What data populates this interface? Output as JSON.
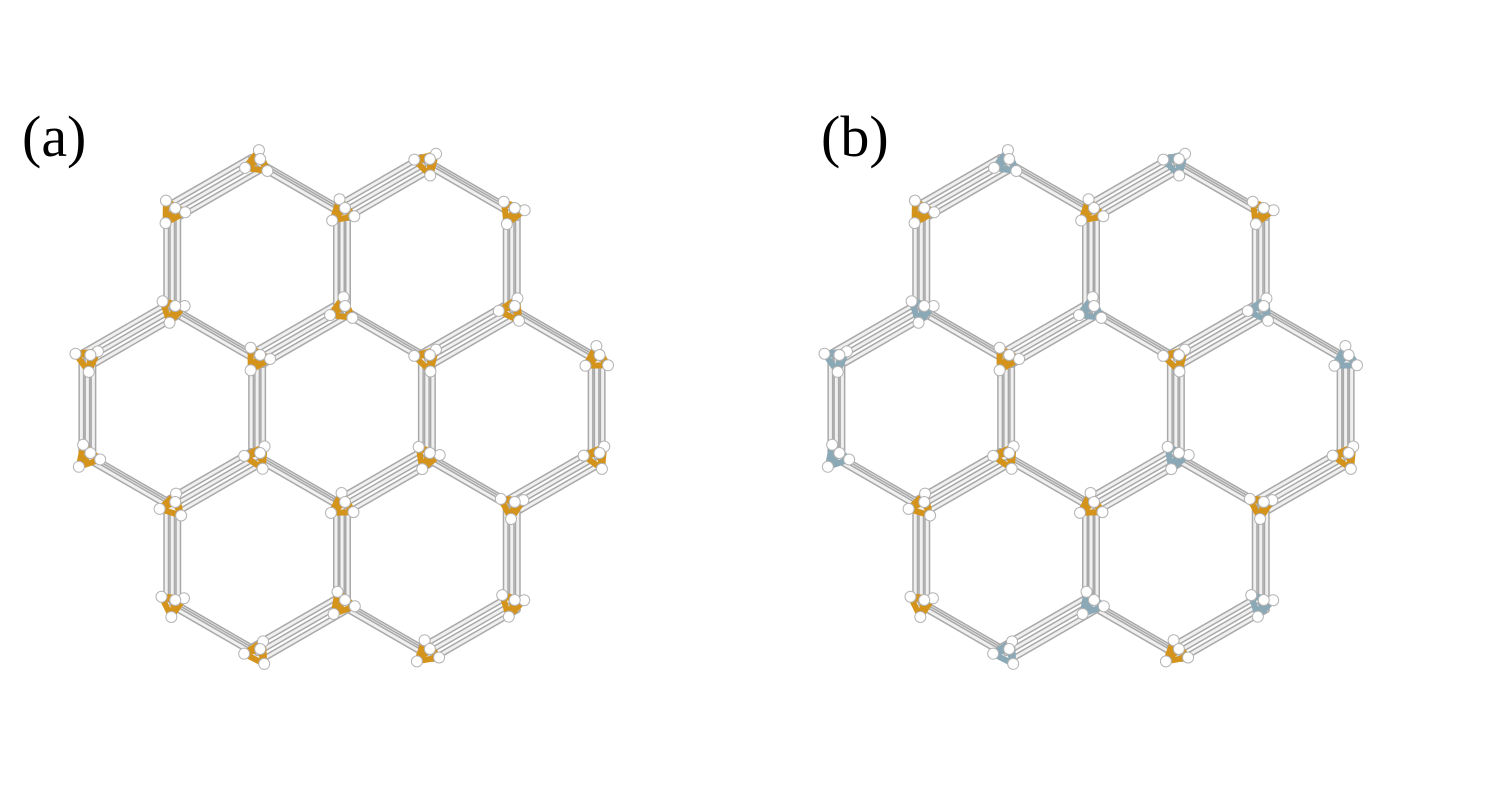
{
  "panels": [
    {
      "label": "(a)",
      "cluster_colors": [
        "gold",
        "gold",
        "gold",
        "gold",
        "gold",
        "gold",
        "gold",
        "gold",
        "gold",
        "gold",
        "gold",
        "gold",
        "gold",
        "gold",
        "gold",
        "gold",
        "gold",
        "gold",
        "gold",
        "gold",
        "gold",
        "gold",
        "gold",
        "gold"
      ]
    },
    {
      "label": "(b)",
      "cluster_colors": [
        "gold",
        "blue",
        "gold",
        "blue",
        "gold",
        "gold",
        "blue",
        "gold",
        "blue",
        "gold",
        "blue",
        "gold",
        "blue",
        "gold",
        "blue",
        "blue",
        "gold",
        "blue",
        "gold",
        "blue",
        "gold",
        "blue",
        "gold",
        "blue"
      ]
    }
  ],
  "colors": {
    "gold": "#d4941c",
    "blue": "#8aa8b6",
    "bond": "#c8c8c8",
    "atom": "#ffffff",
    "atom_outline": "#b4b4b4"
  }
}
